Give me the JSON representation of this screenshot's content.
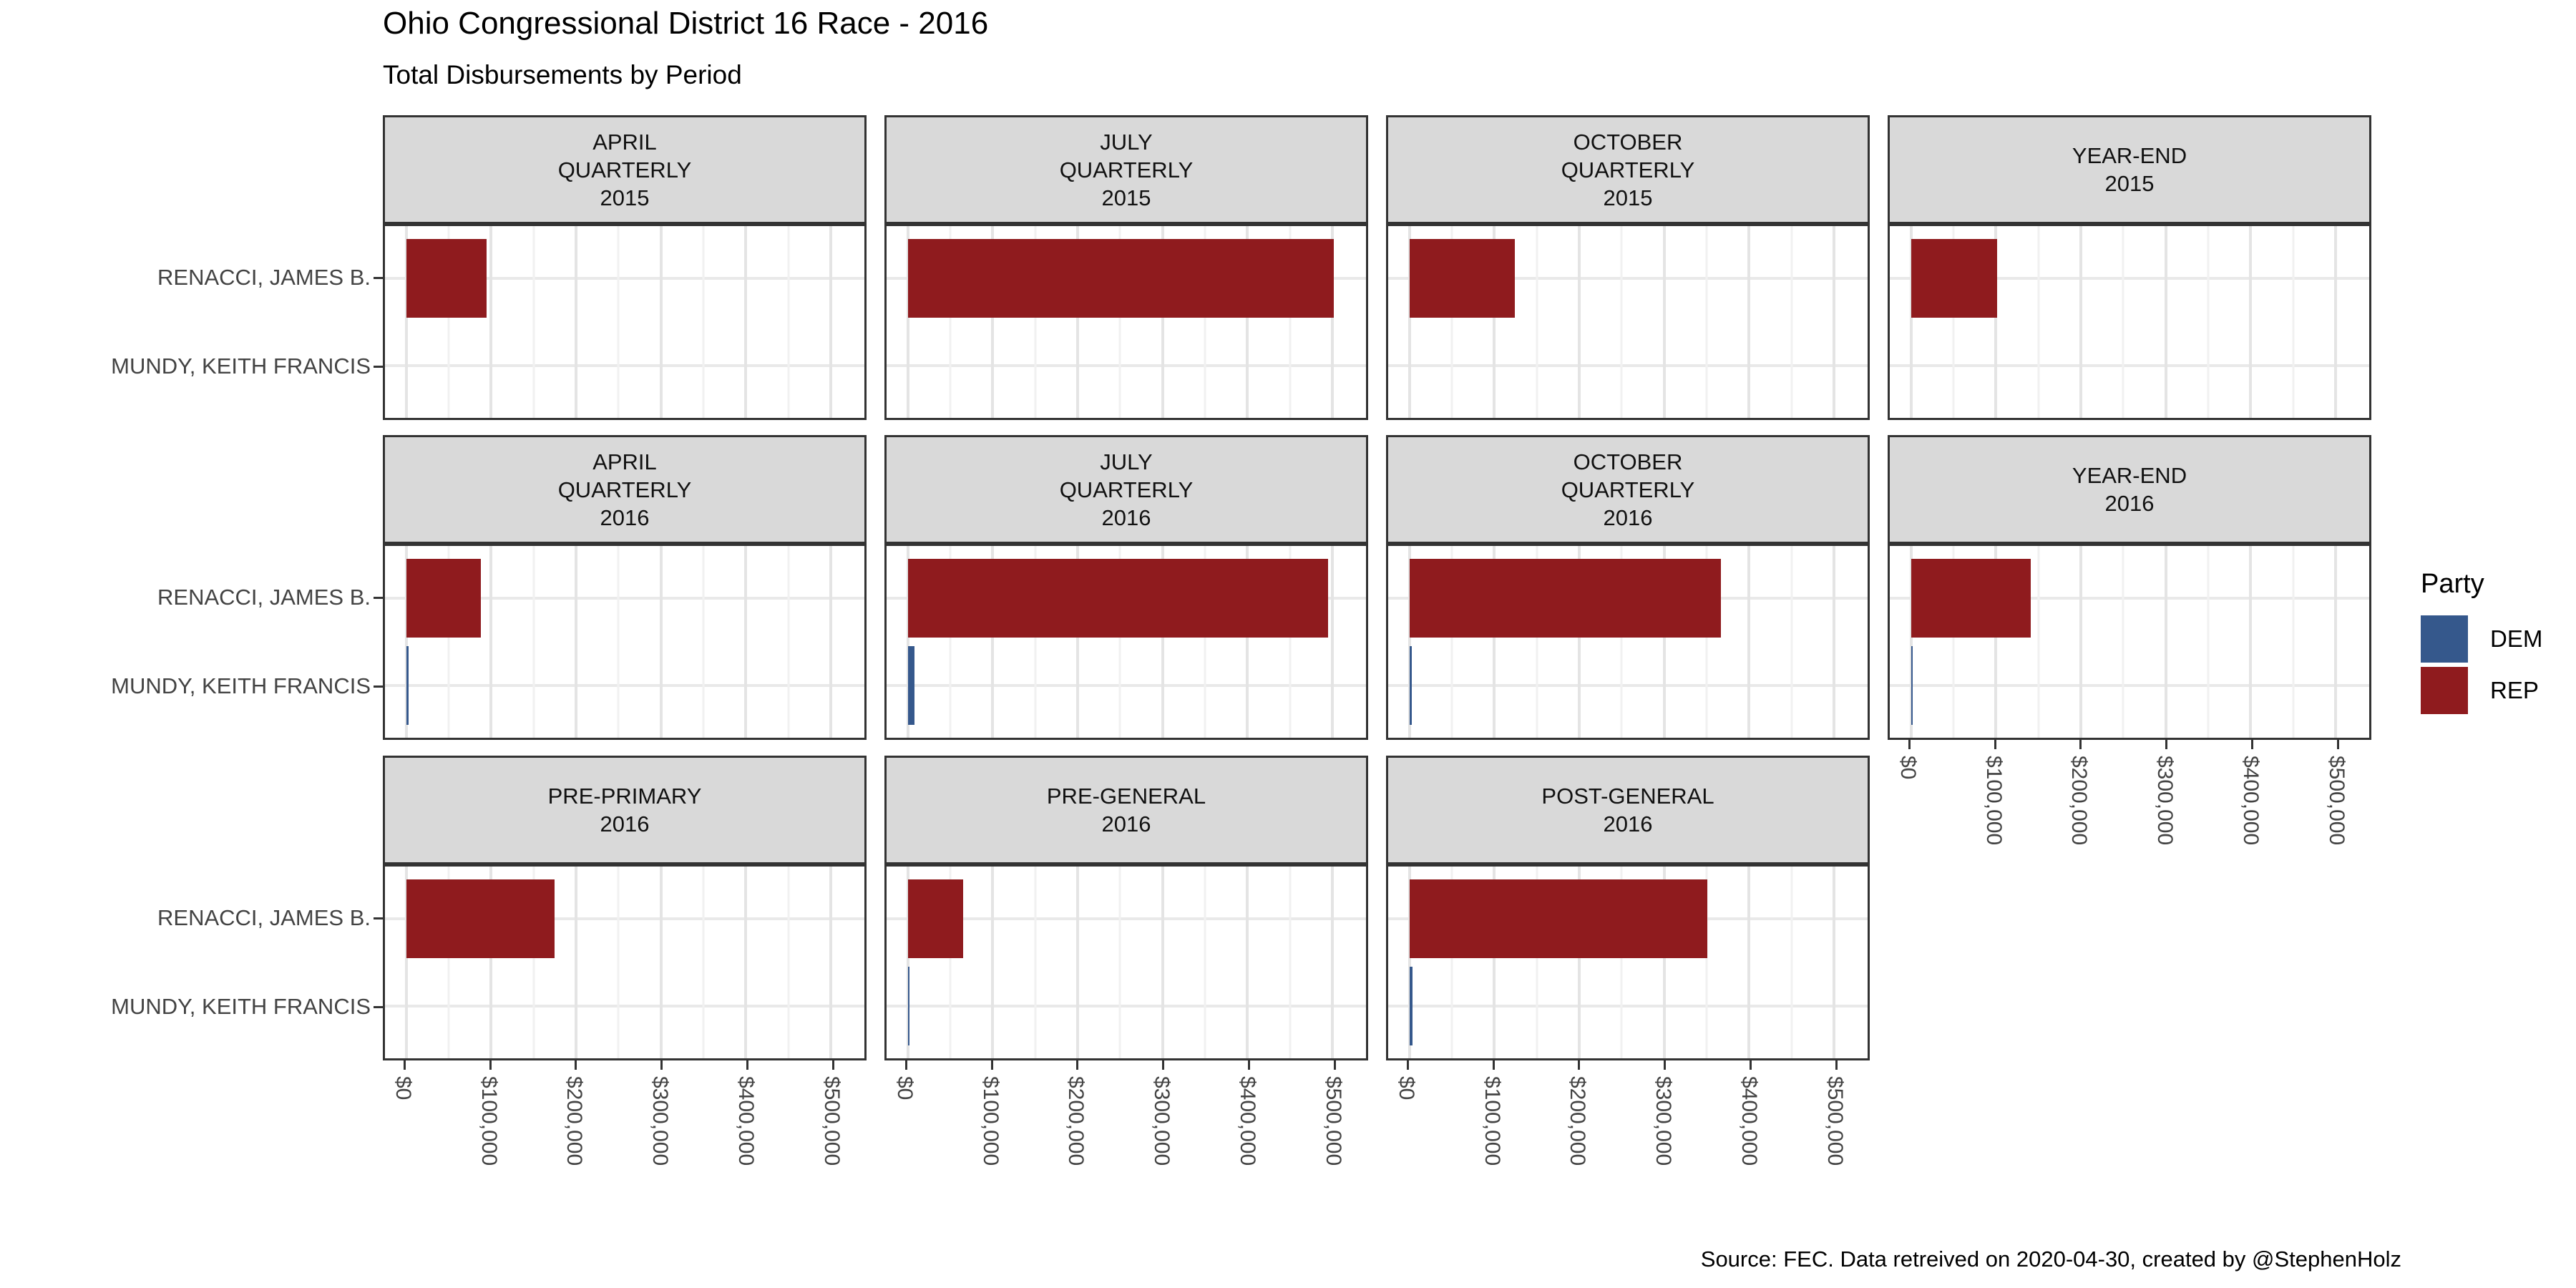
{
  "page": {
    "title": "Ohio Congressional District 16 Race - 2016",
    "subtitle": "Total Disbursements by Period",
    "caption": "Source: FEC. Data retreived on 2020-04-30, created by @StephenHolz"
  },
  "legend": {
    "title": "Party",
    "entries": [
      {
        "label": "DEM",
        "color": "#35588C"
      },
      {
        "label": "REP",
        "color": "#8F1B1E"
      }
    ]
  },
  "style": {
    "header_bg": "#D9D9D9",
    "panel_border": "#333333",
    "gridline_major": "#E4E4E4",
    "gridline_minor": "#F1F1F1",
    "axis_text": "#434343",
    "rep_color": "#8F1B1E",
    "dem_color": "#35588C"
  },
  "chart_data": {
    "type": "bar",
    "orientation": "horizontal",
    "title": "Ohio Congressional District 16 Race - 2016",
    "subtitle": "Total Disbursements by Period",
    "caption": "Source: FEC. Data retreived on 2020-04-30, created by @StephenHolz",
    "legend_title": "Party",
    "legend_position": "right",
    "grid": true,
    "candidates": [
      "RENACCI, JAMES B.",
      "MUNDY, KEITH FRANCIS"
    ],
    "candidate_parties": [
      "REP",
      "DEM"
    ],
    "x_axis": {
      "ticks": [
        "$0",
        "$100,000",
        "$200,000",
        "$300,000",
        "$400,000",
        "$500,000"
      ],
      "tick_values": [
        0,
        100000,
        200000,
        300000,
        400000,
        500000
      ],
      "range": [
        0,
        500000
      ],
      "minor_step": 50000
    },
    "facets": [
      {
        "row": 0,
        "col": 0,
        "header": [
          "APRIL",
          "QUARTERLY",
          "2015"
        ],
        "values": [
          95000,
          null
        ],
        "show_axis": false
      },
      {
        "row": 0,
        "col": 1,
        "header": [
          "JULY",
          "QUARTERLY",
          "2015"
        ],
        "values": [
          502000,
          null
        ],
        "show_axis": false
      },
      {
        "row": 0,
        "col": 2,
        "header": [
          "OCTOBER",
          "QUARTERLY",
          "2015"
        ],
        "values": [
          124000,
          null
        ],
        "show_axis": false
      },
      {
        "row": 0,
        "col": 3,
        "header": [
          "YEAR-END",
          "2015"
        ],
        "values": [
          101000,
          null
        ],
        "show_axis": false
      },
      {
        "row": 1,
        "col": 0,
        "header": [
          "APRIL",
          "QUARTERLY",
          "2016"
        ],
        "values": [
          88000,
          3000
        ],
        "show_axis": false
      },
      {
        "row": 1,
        "col": 1,
        "header": [
          "JULY",
          "QUARTERLY",
          "2016"
        ],
        "values": [
          495000,
          8000
        ],
        "show_axis": false
      },
      {
        "row": 1,
        "col": 2,
        "header": [
          "OCTOBER",
          "QUARTERLY",
          "2016"
        ],
        "values": [
          367000,
          3000
        ],
        "show_axis": false
      },
      {
        "row": 1,
        "col": 3,
        "header": [
          "YEAR-END",
          "2016"
        ],
        "values": [
          141000,
          1500
        ],
        "show_axis": true
      },
      {
        "row": 2,
        "col": 0,
        "header": [
          "PRE-PRIMARY",
          "2016"
        ],
        "values": [
          175000,
          null
        ],
        "show_axis": true
      },
      {
        "row": 2,
        "col": 1,
        "header": [
          "PRE-GENERAL",
          "2016"
        ],
        "values": [
          65000,
          2000
        ],
        "show_axis": true
      },
      {
        "row": 2,
        "col": 2,
        "header": [
          "POST-GENERAL",
          "2016"
        ],
        "values": [
          351000,
          4000
        ],
        "show_axis": true
      }
    ]
  }
}
